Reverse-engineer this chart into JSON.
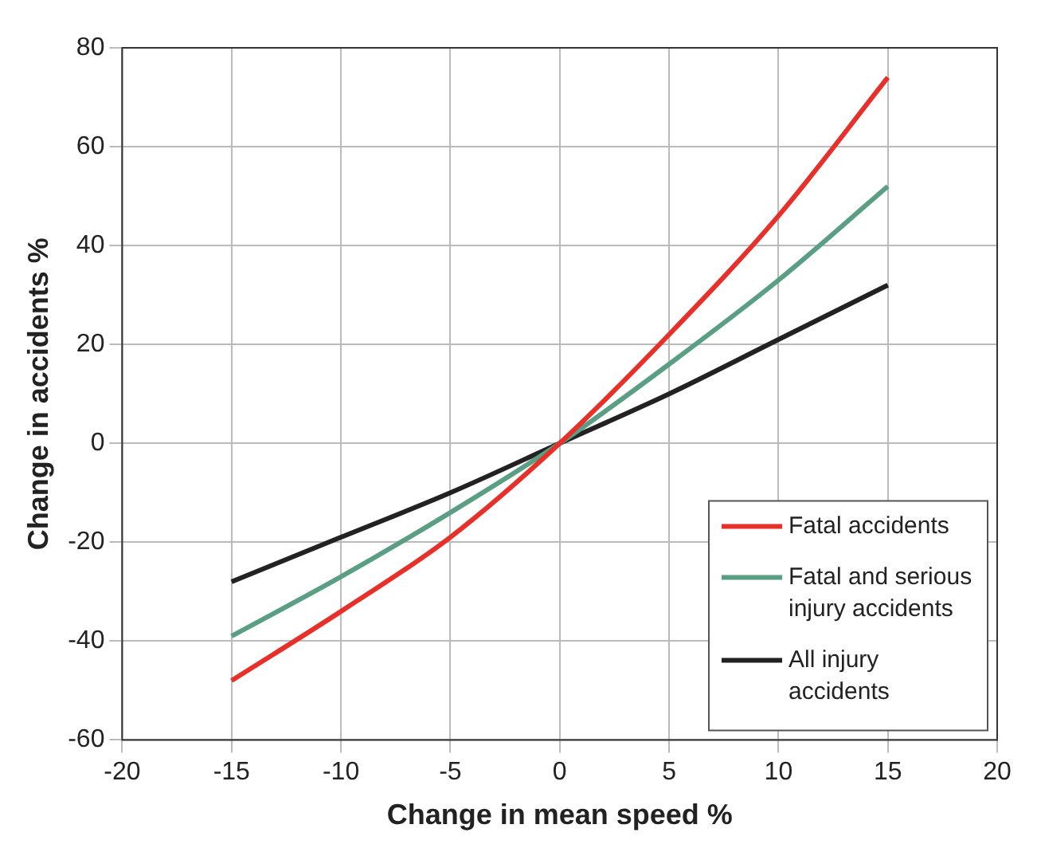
{
  "chart_data": {
    "type": "line",
    "xlabel": "Change in mean speed %",
    "ylabel": "Change in accidents %",
    "x": [
      -15,
      -10,
      -5,
      0,
      5,
      10,
      15
    ],
    "series": [
      {
        "name": "Fatal accidents",
        "color": "#e8302a",
        "values": [
          -48,
          -34,
          -19,
          0,
          22,
          46,
          74
        ]
      },
      {
        "name": "Fatal and serious injury accidents",
        "color": "#5a9e84",
        "values": [
          -39,
          -27,
          -14,
          0,
          16,
          33,
          52
        ]
      },
      {
        "name": "All injury accidents",
        "color": "#222222",
        "values": [
          -28,
          -19,
          -10,
          0,
          10,
          21,
          32
        ]
      }
    ],
    "xlim": [
      -20,
      20
    ],
    "xticks": [
      -20,
      -15,
      -10,
      -5,
      0,
      5,
      10,
      15,
      20
    ],
    "ylim": [
      -60,
      80
    ],
    "yticks": [
      -60,
      -40,
      -20,
      0,
      20,
      40,
      60,
      80
    ],
    "grid": true,
    "legend": "bottom right",
    "marker": "none",
    "line_style": "solid"
  }
}
